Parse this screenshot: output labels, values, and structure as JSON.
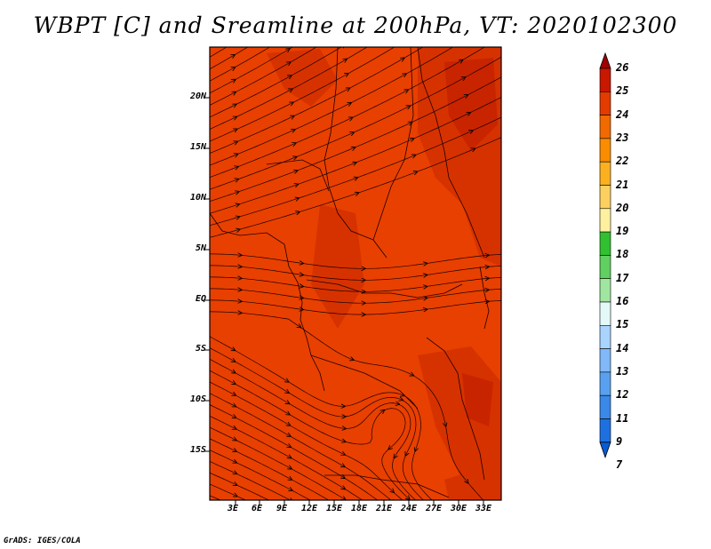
{
  "title": "WBPT [C] and Sreamline at 200hPa, VT: 2020102300",
  "footer": "GrADS: IGES/COLA",
  "lat_labels": [
    "20N",
    "15N",
    "10N",
    "5N",
    "EQ",
    "5S",
    "10S",
    "15S"
  ],
  "lon_labels": [
    "3E",
    "6E",
    "9E",
    "12E",
    "15E",
    "18E",
    "21E",
    "24E",
    "27E",
    "30E",
    "33E"
  ],
  "colorbar": {
    "labels": [
      "26",
      "25",
      "24",
      "23",
      "22",
      "21",
      "20",
      "19",
      "18",
      "17",
      "16",
      "15",
      "14",
      "13",
      "12",
      "11",
      "9",
      "7"
    ],
    "colors": [
      "#a00000",
      "#c81800",
      "#e33b00",
      "#f06a00",
      "#f98c00",
      "#fbb020",
      "#fcd060",
      "#fff0a0",
      "#30c030",
      "#60d060",
      "#a0e6a0",
      "#e4f8f8",
      "#a8d4ff",
      "#80b8f8",
      "#5aa0f0",
      "#3a88e8",
      "#1e70e0",
      "#0a5ad2"
    ]
  },
  "field_colors": {
    "base": "#e84000",
    "warm": "#d63200",
    "hot": "#c82400"
  }
}
